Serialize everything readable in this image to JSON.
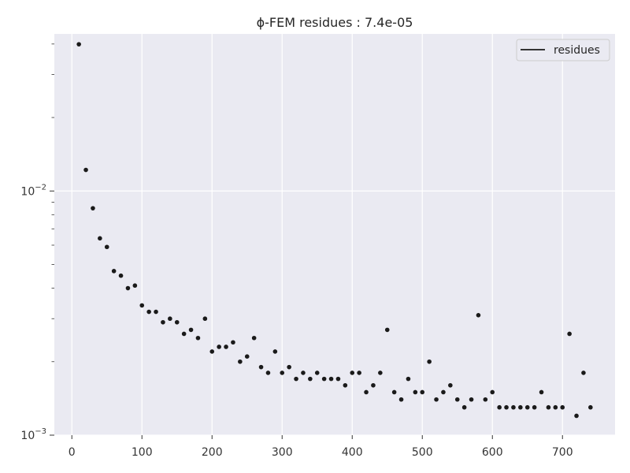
{
  "chart_data": {
    "type": "scatter",
    "title": "ϕ-FEM residues : 7.4e-05",
    "xlabel": "",
    "ylabel": "",
    "x_scale": "linear",
    "y_scale": "log",
    "xlim": [
      -25,
      775
    ],
    "ylim": [
      0.001,
      0.044
    ],
    "grid": true,
    "legend_position": "top-right",
    "background_color": "#EAEAF2",
    "grid_color": "#FFFFFF",
    "point_color": "#1A1A1A",
    "x_ticks": [
      {
        "value": 0,
        "label": "0"
      },
      {
        "value": 100,
        "label": "100"
      },
      {
        "value": 200,
        "label": "200"
      },
      {
        "value": 300,
        "label": "300"
      },
      {
        "value": 400,
        "label": "400"
      },
      {
        "value": 500,
        "label": "500"
      },
      {
        "value": 600,
        "label": "600"
      },
      {
        "value": 700,
        "label": "700"
      }
    ],
    "y_ticks": [
      {
        "value": 0.001,
        "base": "10",
        "exp": "−3"
      },
      {
        "value": 0.01,
        "base": "10",
        "exp": "−2"
      }
    ],
    "y_minor_ticks": [
      0.002,
      0.003,
      0.004,
      0.005,
      0.006,
      0.007,
      0.008,
      0.009,
      0.02,
      0.03,
      0.04
    ],
    "series": [
      {
        "name": "residues",
        "x": [
          10,
          20,
          30,
          40,
          50,
          60,
          70,
          80,
          90,
          100,
          110,
          120,
          130,
          140,
          150,
          160,
          170,
          180,
          190,
          200,
          210,
          220,
          230,
          240,
          250,
          260,
          270,
          280,
          290,
          300,
          310,
          320,
          330,
          340,
          350,
          360,
          370,
          380,
          390,
          400,
          410,
          420,
          430,
          440,
          450,
          460,
          470,
          480,
          490,
          500,
          510,
          520,
          530,
          540,
          550,
          560,
          570,
          580,
          590,
          600,
          610,
          620,
          630,
          640,
          650,
          660,
          670,
          680,
          690,
          700,
          710,
          720,
          730,
          740
        ],
        "y": [
          0.0399,
          0.0122,
          0.0085,
          0.0064,
          0.0059,
          0.0047,
          0.0045,
          0.004,
          0.0041,
          0.0034,
          0.0032,
          0.0032,
          0.0029,
          0.003,
          0.0029,
          0.0026,
          0.0027,
          0.0025,
          0.003,
          0.0022,
          0.0023,
          0.0023,
          0.0024,
          0.002,
          0.0021,
          0.0025,
          0.0019,
          0.0018,
          0.0022,
          0.0018,
          0.0019,
          0.0017,
          0.0018,
          0.0017,
          0.0018,
          0.0017,
          0.0017,
          0.0017,
          0.0016,
          0.0018,
          0.0018,
          0.0015,
          0.0016,
          0.0018,
          0.0027,
          0.0015,
          0.0014,
          0.0017,
          0.0015,
          0.0015,
          0.002,
          0.0014,
          0.0015,
          0.0016,
          0.0014,
          0.0013,
          0.0014,
          0.0031,
          0.0014,
          0.0015,
          0.0013,
          0.0013,
          0.0013,
          0.0013,
          0.0013,
          0.0013,
          0.0015,
          0.0013,
          0.0013,
          0.0013,
          0.0026,
          0.0012,
          0.0018,
          0.0013
        ]
      }
    ]
  }
}
